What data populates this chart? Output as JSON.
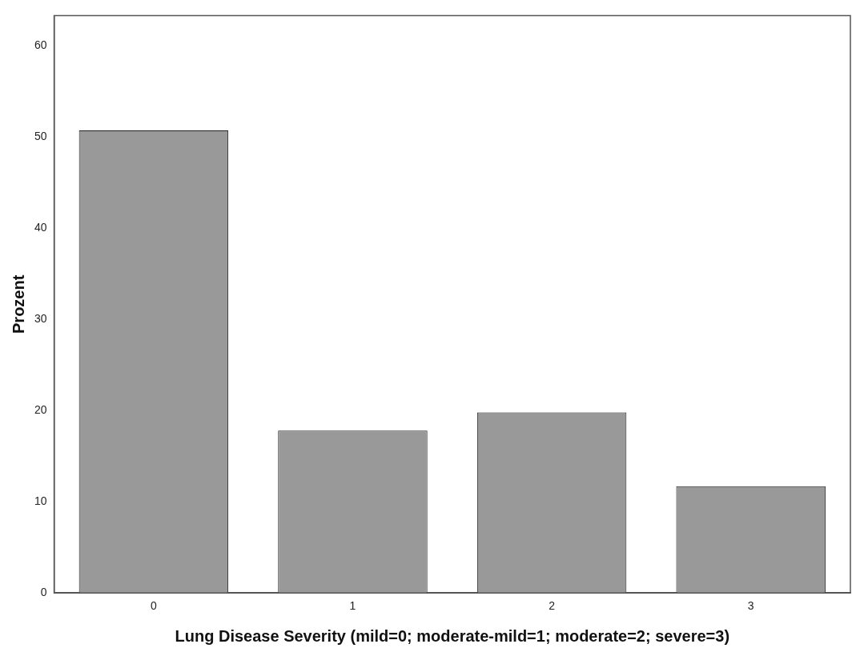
{
  "chart_data": {
    "type": "bar",
    "xlabel": "Lung Disease Severity (mild=0; moderate-mild=1; moderate=2; severe=3)",
    "ylabel": "Prozent",
    "categories": [
      "0",
      "1",
      "2",
      "3"
    ],
    "values": [
      50.7,
      17.8,
      19.8,
      11.7
    ],
    "color": "#999999",
    "ylim": [
      0,
      63.3
    ],
    "yticks": [
      0,
      10,
      20,
      30,
      40,
      50,
      60
    ],
    "grid": false,
    "legend": false
  }
}
